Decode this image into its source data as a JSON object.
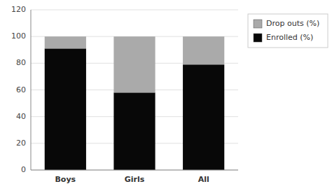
{
  "chart_data": {
    "type": "bar",
    "stacked": true,
    "categories": [
      "Boys",
      "Girls",
      "All"
    ],
    "series": [
      {
        "name": "Enrolled (%)",
        "color": "#080808",
        "values": [
          91,
          58,
          79
        ]
      },
      {
        "name": "Drop outs (%)",
        "color": "#aaaaaa",
        "values": [
          9,
          42,
          21
        ]
      }
    ],
    "ylim": [
      0,
      120
    ],
    "yticks": [
      0,
      20,
      40,
      60,
      80,
      100,
      120
    ],
    "grid": true,
    "legend": "upper right"
  }
}
